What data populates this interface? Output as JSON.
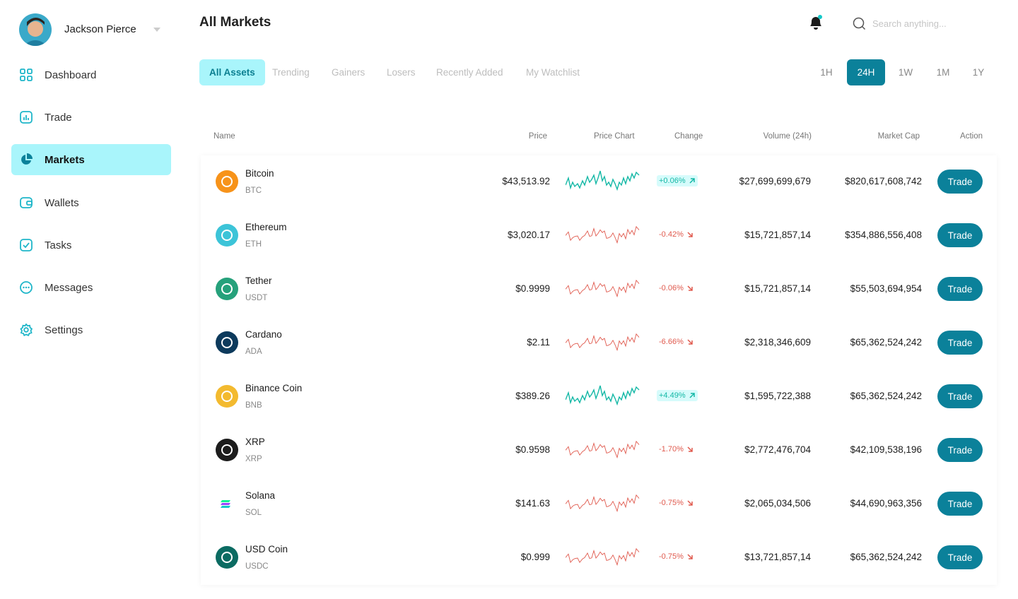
{
  "user": {
    "name": "Jackson Pierce"
  },
  "nav": [
    "Dashboard",
    "Trade",
    "Markets",
    "Wallets",
    "Tasks",
    "Messages",
    "Settings"
  ],
  "header": {
    "title": "All Markets",
    "search_placeholder": "Search anything..."
  },
  "tabs": [
    "All Assets",
    "Trending",
    "Gainers",
    "Losers",
    "Recently Added",
    "My Watchlist"
  ],
  "ranges": [
    "1H",
    "24H",
    "1W",
    "1M",
    "1Y"
  ],
  "table": {
    "columns": [
      "Name",
      "Price",
      "Price Chart",
      "Change",
      "Volume (24h)",
      "Market Cap",
      "Action"
    ],
    "rows": [
      {
        "name": "Bitcoin",
        "symbol": "BTC",
        "price": "$43,513.92",
        "change": "+0.06%",
        "volume": "$27,699,699,679",
        "market_cap": "$820,617,608,742",
        "action": "Trade"
      },
      {
        "name": "Ethereum",
        "symbol": "ETH",
        "price": "$3,020.17",
        "change": "-0.42%",
        "volume": "$15,721,857,14",
        "market_cap": "$354,886,556,408",
        "action": "Trade"
      },
      {
        "name": "Tether",
        "symbol": "USDT",
        "price": "$0.9999",
        "change": "-0.06%",
        "volume": "$15,721,857,14",
        "market_cap": "$55,503,694,954",
        "action": "Trade"
      },
      {
        "name": "Cardano",
        "symbol": "ADA",
        "price": "$2.11",
        "change": "-6.66%",
        "volume": "$2,318,346,609",
        "market_cap": "$65,362,524,242",
        "action": "Trade"
      },
      {
        "name": "Binance Coin",
        "symbol": "BNB",
        "price": "$389.26",
        "change": "+4.49%",
        "volume": "$1,595,722,388",
        "market_cap": "$65,362,524,242",
        "action": "Trade"
      },
      {
        "name": "XRP",
        "symbol": "XRP",
        "price": "$0.9598",
        "change": "-1.70%",
        "volume": "$2,772,476,704",
        "market_cap": "$42,109,538,196",
        "action": "Trade"
      },
      {
        "name": "Solana",
        "symbol": "SOL",
        "price": "$141.63",
        "change": "-0.75%",
        "volume": "$2,065,034,506",
        "market_cap": "$44,690,963,356",
        "action": "Trade"
      },
      {
        "name": "USD Coin",
        "symbol": "USDC",
        "price": "$0.999",
        "change": "-0.75%",
        "volume": "$13,721,857,14",
        "market_cap": "$65,362,524,242",
        "action": "Trade"
      }
    ]
  }
}
